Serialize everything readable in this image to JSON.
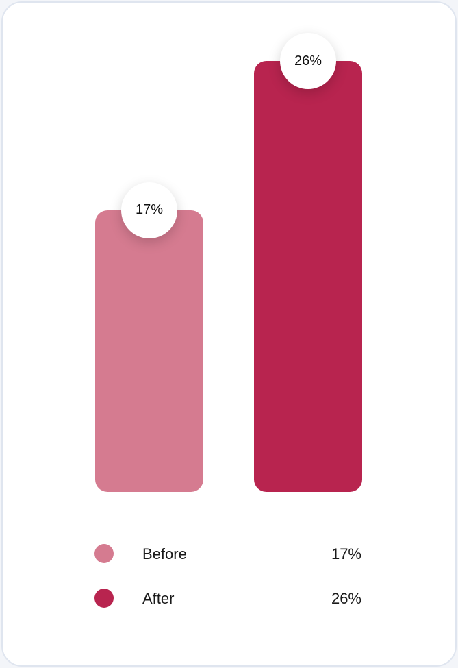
{
  "chart_data": {
    "type": "bar",
    "categories": [
      "Before",
      "After"
    ],
    "values": [
      17,
      26
    ],
    "value_labels": [
      "17%",
      "26%"
    ],
    "ylim": [
      0,
      26
    ],
    "colors": [
      "#d57b90",
      "#b8244f"
    ],
    "grid": false,
    "legend": {
      "placement": "bottom",
      "items": [
        {
          "label": "Before",
          "value": "17%",
          "color": "#d57b90"
        },
        {
          "label": "After",
          "value": "26%",
          "color": "#b8244f"
        }
      ]
    }
  }
}
